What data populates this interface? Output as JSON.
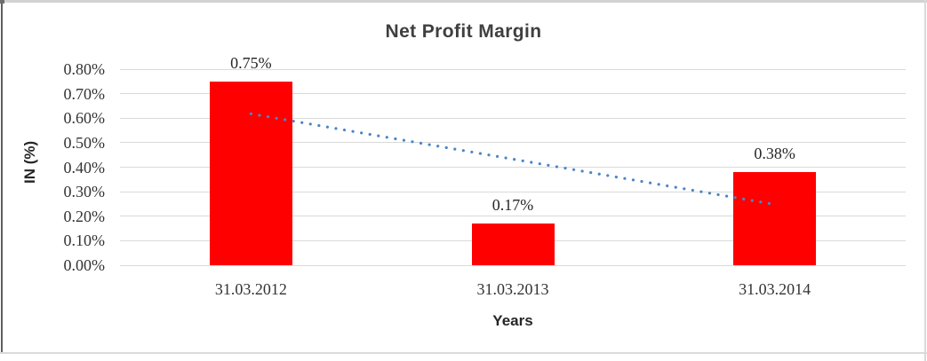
{
  "chart_data": {
    "type": "bar",
    "title": "Net Profit Margin",
    "xlabel": "Years",
    "ylabel": "IN (%)",
    "categories": [
      "31.03.2012",
      "31.03.2013",
      "31.03.2014"
    ],
    "values": [
      0.75,
      0.17,
      0.38
    ],
    "data_labels": [
      "0.75%",
      "0.17%",
      "0.38%"
    ],
    "ytick_labels": [
      "0.00%",
      "0.10%",
      "0.20%",
      "0.30%",
      "0.40%",
      "0.50%",
      "0.60%",
      "0.70%",
      "0.80%"
    ],
    "ylim": [
      0,
      0.8
    ],
    "grid": true,
    "legend": false,
    "bar_color": "#ff0000",
    "gridline_color": "#d9d9d9",
    "trendline": {
      "type": "linear",
      "style": "dotted",
      "color": "#4a86c8",
      "points": [
        {
          "x": "31.03.2012",
          "y": 0.618
        },
        {
          "x": "31.03.2014",
          "y": 0.248
        }
      ]
    }
  }
}
